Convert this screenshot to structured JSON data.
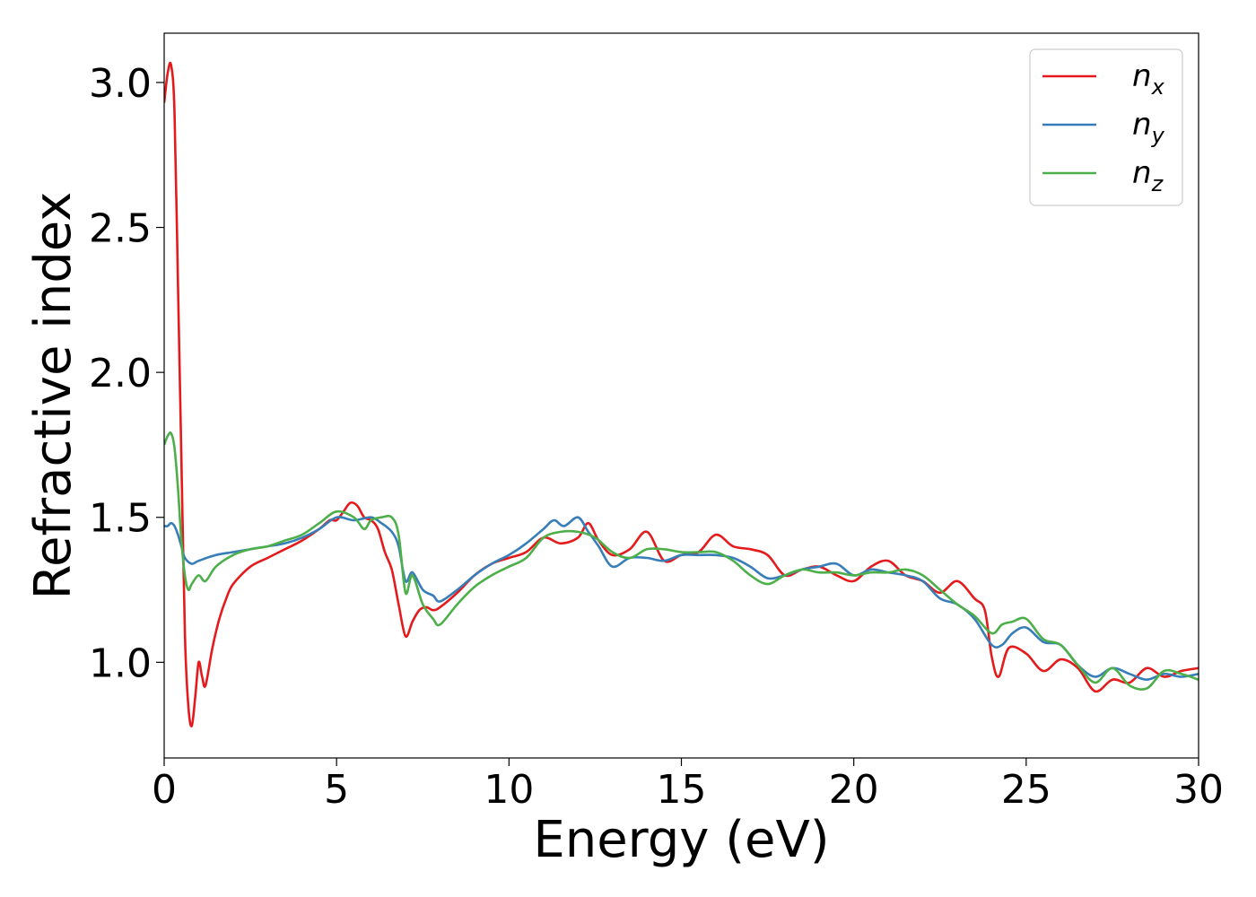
{
  "chart_data": {
    "type": "line",
    "xlabel": "Energy (eV)",
    "ylabel": "Refractive index",
    "xlim": [
      0,
      30
    ],
    "ylim": [
      0.67,
      3.17
    ],
    "xticks": [
      0,
      5,
      10,
      15,
      20,
      25,
      30
    ],
    "yticks": [
      1.0,
      1.5,
      2.0,
      2.5,
      3.0
    ],
    "xtick_labels": [
      "0",
      "5",
      "10",
      "15",
      "20",
      "25",
      "30"
    ],
    "ytick_labels": [
      "1.0",
      "1.5",
      "2.0",
      "2.5",
      "3.0"
    ],
    "grid": false,
    "legend": {
      "placement": "top-right"
    },
    "series": [
      {
        "name": "n",
        "subscript": "x",
        "color": "#e41a1c",
        "x": [
          0,
          0.1,
          0.2,
          0.3,
          0.4,
          0.5,
          0.6,
          0.7,
          0.8,
          0.9,
          1.0,
          1.1,
          1.2,
          1.4,
          1.6,
          1.8,
          2.0,
          2.5,
          3.0,
          3.5,
          4.0,
          4.5,
          4.8,
          5.0,
          5.2,
          5.4,
          5.6,
          5.8,
          6.0,
          6.2,
          6.4,
          6.6,
          6.8,
          7.0,
          7.2,
          7.4,
          7.6,
          7.8,
          8.0,
          8.5,
          9.0,
          9.5,
          10.0,
          10.5,
          11.0,
          11.5,
          12.0,
          12.3,
          12.6,
          13.0,
          13.5,
          14.0,
          14.5,
          15.0,
          15.5,
          16.0,
          16.5,
          17.0,
          17.5,
          18.0,
          18.5,
          19.0,
          19.5,
          20.0,
          20.5,
          21.0,
          21.5,
          22.0,
          22.5,
          23.0,
          23.5,
          23.8,
          24.0,
          24.2,
          24.5,
          25.0,
          25.5,
          26.0,
          26.5,
          27.0,
          27.5,
          28.0,
          28.5,
          29.0,
          29.5,
          30.0
        ],
        "y": [
          2.93,
          3.03,
          3.06,
          2.9,
          2.3,
          1.7,
          1.1,
          0.85,
          0.78,
          0.88,
          1.0,
          0.95,
          0.92,
          1.05,
          1.15,
          1.22,
          1.27,
          1.33,
          1.36,
          1.39,
          1.42,
          1.46,
          1.49,
          1.49,
          1.52,
          1.55,
          1.54,
          1.5,
          1.49,
          1.46,
          1.38,
          1.32,
          1.2,
          1.09,
          1.14,
          1.18,
          1.19,
          1.18,
          1.19,
          1.24,
          1.3,
          1.34,
          1.36,
          1.38,
          1.43,
          1.41,
          1.43,
          1.48,
          1.42,
          1.37,
          1.39,
          1.45,
          1.35,
          1.37,
          1.38,
          1.44,
          1.4,
          1.39,
          1.37,
          1.3,
          1.32,
          1.33,
          1.3,
          1.28,
          1.33,
          1.35,
          1.3,
          1.28,
          1.24,
          1.28,
          1.22,
          1.18,
          1.02,
          0.95,
          1.05,
          1.03,
          0.97,
          1.01,
          0.98,
          0.9,
          0.94,
          0.93,
          0.98,
          0.95,
          0.97,
          0.98
        ]
      },
      {
        "name": "n",
        "subscript": "y",
        "color": "#377eb8",
        "x": [
          0,
          0.1,
          0.2,
          0.3,
          0.4,
          0.5,
          0.6,
          0.8,
          1.0,
          1.5,
          2.0,
          2.5,
          3.0,
          3.5,
          4.0,
          4.5,
          5.0,
          5.5,
          6.0,
          6.3,
          6.6,
          6.8,
          7.0,
          7.2,
          7.5,
          7.8,
          8.0,
          8.5,
          9.0,
          9.5,
          10.0,
          10.5,
          11.0,
          11.3,
          11.6,
          12.0,
          12.3,
          12.6,
          13.0,
          13.5,
          14.0,
          14.5,
          15.0,
          15.5,
          16.0,
          16.5,
          17.0,
          17.5,
          18.0,
          18.5,
          19.0,
          19.5,
          20.0,
          20.5,
          21.0,
          21.5,
          22.0,
          22.5,
          23.0,
          23.5,
          24.0,
          24.3,
          24.6,
          25.0,
          25.5,
          26.0,
          26.5,
          27.0,
          27.5,
          28.0,
          28.5,
          29.0,
          29.5,
          30.0
        ],
        "y": [
          1.47,
          1.47,
          1.48,
          1.47,
          1.44,
          1.4,
          1.36,
          1.34,
          1.35,
          1.37,
          1.38,
          1.39,
          1.4,
          1.41,
          1.43,
          1.46,
          1.5,
          1.49,
          1.5,
          1.48,
          1.45,
          1.4,
          1.28,
          1.31,
          1.25,
          1.23,
          1.21,
          1.25,
          1.3,
          1.34,
          1.37,
          1.41,
          1.46,
          1.49,
          1.47,
          1.5,
          1.45,
          1.4,
          1.33,
          1.36,
          1.36,
          1.35,
          1.37,
          1.37,
          1.37,
          1.36,
          1.33,
          1.29,
          1.3,
          1.32,
          1.33,
          1.34,
          1.3,
          1.32,
          1.31,
          1.3,
          1.28,
          1.22,
          1.2,
          1.15,
          1.06,
          1.06,
          1.1,
          1.12,
          1.07,
          1.06,
          0.99,
          0.95,
          0.98,
          0.96,
          0.94,
          0.96,
          0.95,
          0.96
        ]
      },
      {
        "name": "n",
        "subscript": "z",
        "color": "#4daf4a",
        "x": [
          0,
          0.1,
          0.2,
          0.3,
          0.4,
          0.5,
          0.6,
          0.7,
          0.8,
          1.0,
          1.2,
          1.5,
          2.0,
          2.5,
          3.0,
          3.5,
          4.0,
          4.5,
          5.0,
          5.5,
          5.8,
          6.0,
          6.3,
          6.6,
          6.8,
          7.0,
          7.2,
          7.5,
          7.8,
          8.0,
          8.5,
          9.0,
          9.5,
          10.0,
          10.5,
          11.0,
          11.5,
          12.0,
          12.5,
          13.0,
          13.5,
          14.0,
          14.5,
          15.0,
          15.5,
          16.0,
          16.5,
          17.0,
          17.5,
          18.0,
          18.5,
          19.0,
          19.5,
          20.0,
          20.5,
          21.0,
          21.5,
          22.0,
          22.5,
          23.0,
          23.5,
          24.0,
          24.3,
          24.6,
          25.0,
          25.5,
          26.0,
          26.5,
          27.0,
          27.5,
          28.0,
          28.5,
          29.0,
          29.5,
          30.0
        ],
        "y": [
          1.75,
          1.78,
          1.79,
          1.74,
          1.6,
          1.42,
          1.3,
          1.25,
          1.27,
          1.3,
          1.28,
          1.33,
          1.37,
          1.39,
          1.4,
          1.42,
          1.44,
          1.48,
          1.52,
          1.5,
          1.46,
          1.49,
          1.5,
          1.5,
          1.44,
          1.24,
          1.3,
          1.2,
          1.15,
          1.13,
          1.2,
          1.26,
          1.3,
          1.33,
          1.36,
          1.43,
          1.45,
          1.45,
          1.43,
          1.38,
          1.36,
          1.39,
          1.39,
          1.38,
          1.38,
          1.38,
          1.35,
          1.3,
          1.27,
          1.3,
          1.32,
          1.31,
          1.31,
          1.3,
          1.31,
          1.31,
          1.32,
          1.3,
          1.25,
          1.2,
          1.16,
          1.1,
          1.13,
          1.14,
          1.15,
          1.08,
          1.06,
          0.99,
          0.93,
          0.98,
          0.92,
          0.91,
          0.97,
          0.96,
          0.94
        ]
      }
    ]
  }
}
